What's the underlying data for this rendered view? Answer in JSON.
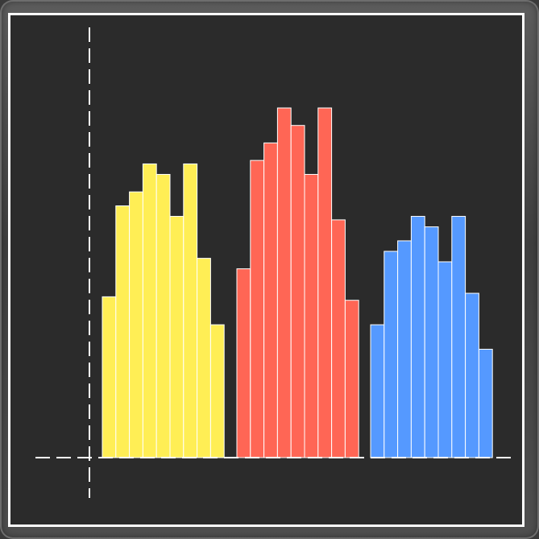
{
  "chart_data": {
    "type": "bar",
    "title": "",
    "xlabel": "",
    "ylabel": "",
    "ylim": [
      0,
      100
    ],
    "grid": false,
    "legend": "none",
    "series": [
      {
        "color": "#ffee55",
        "values": [
          46,
          72,
          76,
          84,
          81,
          69,
          84,
          57,
          38
        ]
      },
      {
        "color": "#ff6655",
        "values": [
          54,
          85,
          90,
          100,
          95,
          81,
          100,
          68,
          45
        ]
      },
      {
        "color": "#5599ff",
        "values": [
          38,
          59,
          62,
          69,
          66,
          56,
          69,
          47,
          31
        ]
      }
    ]
  }
}
